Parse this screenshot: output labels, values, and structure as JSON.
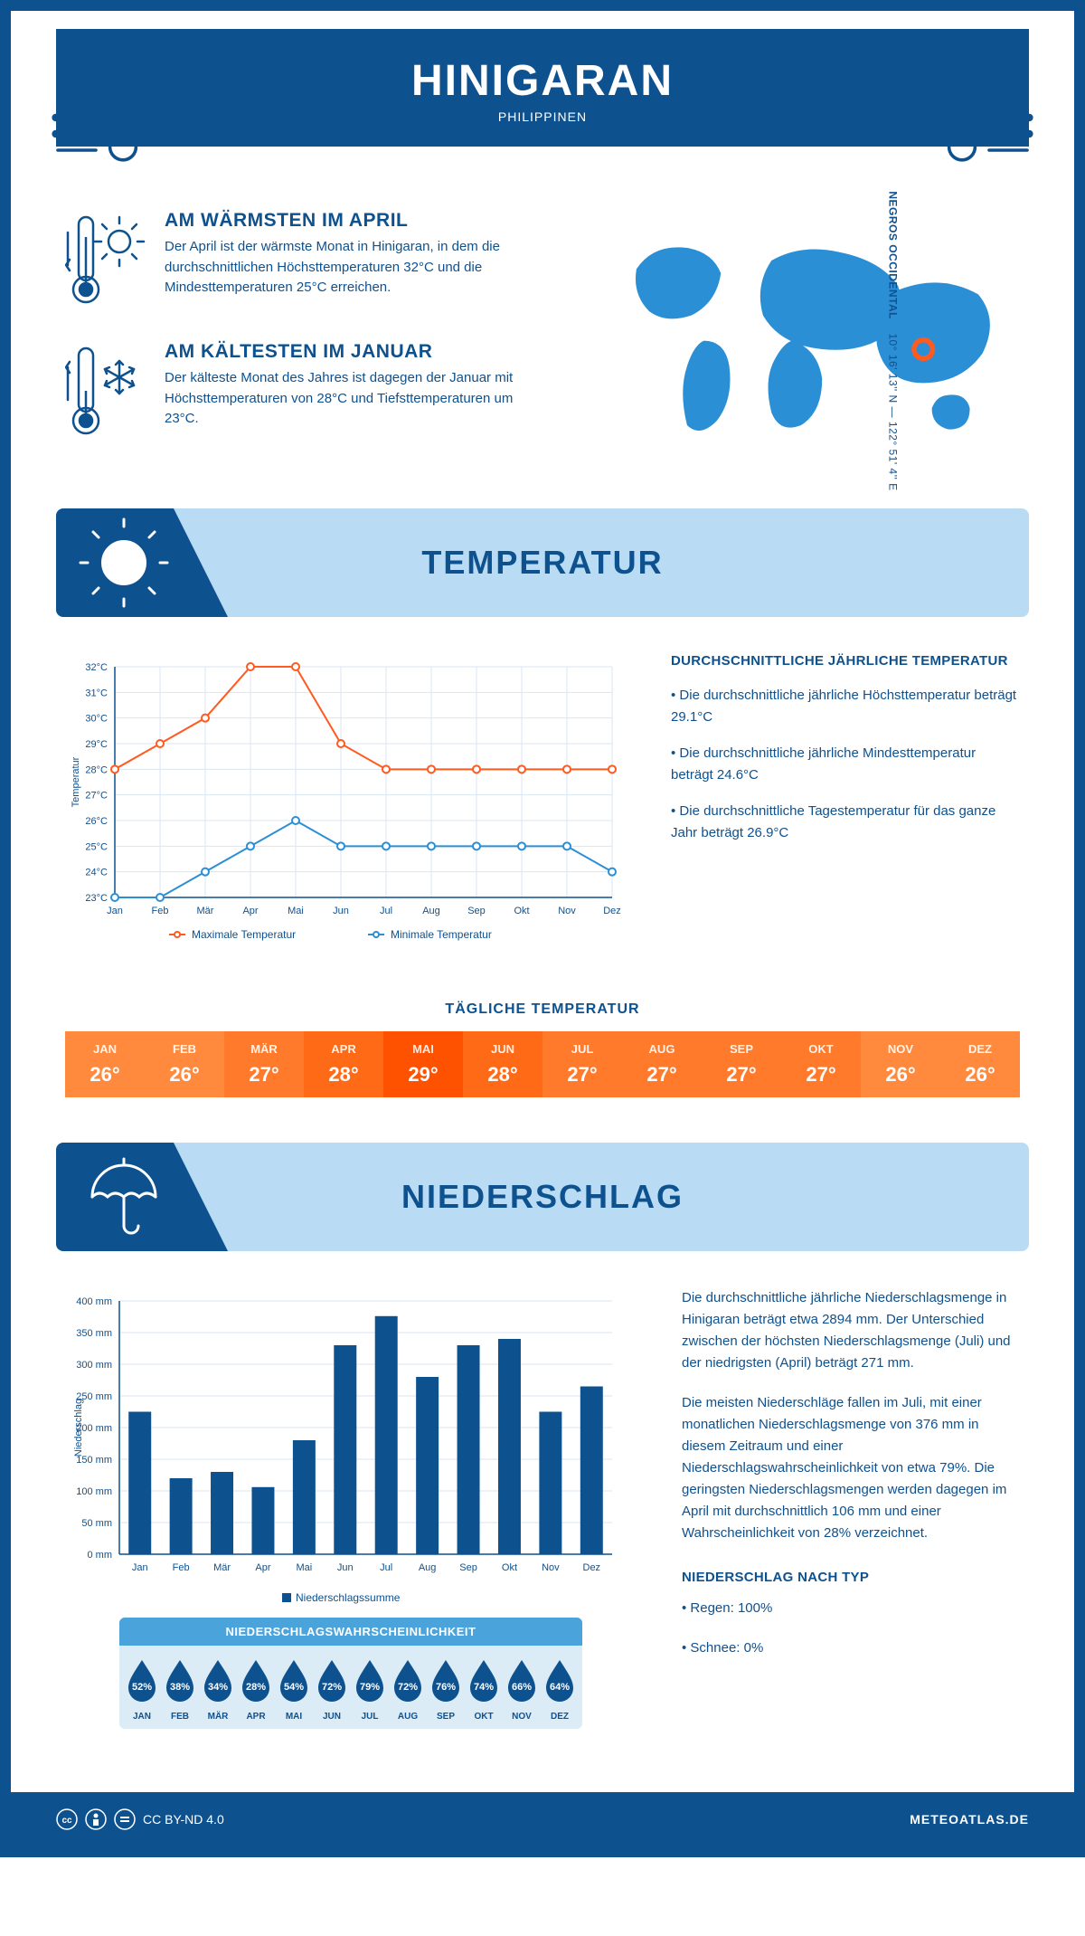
{
  "header": {
    "title": "HINIGARAN",
    "subtitle": "PHILIPPINEN"
  },
  "coords": {
    "lat": "10° 16' 13'' N",
    "lon": "122° 51' 4'' E",
    "region": "NEGROS OCCIDENTAL"
  },
  "warm": {
    "title": "AM WÄRMSTEN IM APRIL",
    "text": "Der April ist der wärmste Monat in Hinigaran, in dem die durchschnittlichen Höchsttemperaturen 32°C und die Mindesttemperaturen 25°C erreichen."
  },
  "cold": {
    "title": "AM KÄLTESTEN IM JANUAR",
    "text": "Der kälteste Monat des Jahres ist dagegen der Januar mit Höchsttemperaturen von 28°C und Tiefsttemperaturen um 23°C."
  },
  "temp_section": {
    "title": "TEMPERATUR"
  },
  "temp_chart": {
    "type": "line",
    "months": [
      "Jan",
      "Feb",
      "Mär",
      "Apr",
      "Mai",
      "Jun",
      "Jul",
      "Aug",
      "Sep",
      "Okt",
      "Nov",
      "Dez"
    ],
    "max": [
      28,
      29,
      30,
      32,
      32,
      29,
      28,
      28,
      28,
      28,
      28,
      28
    ],
    "min": [
      23,
      23,
      24,
      25,
      26,
      25,
      25,
      25,
      25,
      25,
      25,
      24
    ],
    "ylim": [
      23,
      32
    ],
    "ytick_step": 1,
    "max_color": "#ff5a1f",
    "min_color": "#2b8fd6",
    "grid_color": "#d8e6f0",
    "axis_color": "#0e518f",
    "yaxis_label": "Temperatur",
    "legend_max": "Maximale Temperatur",
    "legend_min": "Minimale Temperatur",
    "line_width": 2,
    "marker_r": 4
  },
  "temp_text": {
    "heading": "DURCHSCHNITTLICHE JÄHRLICHE TEMPERATUR",
    "b1": "• Die durchschnittliche jährliche Höchsttemperatur beträgt 29.1°C",
    "b2": "• Die durchschnittliche jährliche Mindesttemperatur beträgt 24.6°C",
    "b3": "• Die durchschnittliche Tagestemperatur für das ganze Jahr beträgt 26.9°C"
  },
  "daily": {
    "title": "TÄGLICHE TEMPERATUR",
    "months": [
      "JAN",
      "FEB",
      "MÄR",
      "APR",
      "MAI",
      "JUN",
      "JUL",
      "AUG",
      "SEP",
      "OKT",
      "NOV",
      "DEZ"
    ],
    "values": [
      "26°",
      "26°",
      "27°",
      "28°",
      "29°",
      "28°",
      "27°",
      "27°",
      "27°",
      "27°",
      "26°",
      "26°"
    ],
    "colors": [
      "#ff8a3d",
      "#ff8a3d",
      "#ff7a2a",
      "#ff6a17",
      "#ff5200",
      "#ff6a17",
      "#ff7a2a",
      "#ff7a2a",
      "#ff7a2a",
      "#ff7a2a",
      "#ff8a3d",
      "#ff8a3d"
    ]
  },
  "precip_section": {
    "title": "NIEDERSCHLAG"
  },
  "precip_chart": {
    "type": "bar",
    "months": [
      "Jan",
      "Feb",
      "Mär",
      "Apr",
      "Mai",
      "Jun",
      "Jul",
      "Aug",
      "Sep",
      "Okt",
      "Nov",
      "Dez"
    ],
    "values": [
      225,
      120,
      130,
      106,
      180,
      330,
      376,
      280,
      330,
      340,
      225,
      265
    ],
    "ylim": [
      0,
      400
    ],
    "ytick_step": 50,
    "bar_color": "#0e518f",
    "grid_color": "#d8e6f0",
    "yaxis_label": "Niederschlag",
    "yunit": " mm",
    "legend": "Niederschlagssumme",
    "bar_width": 0.55
  },
  "precip_text": {
    "p1": "Die durchschnittliche jährliche Niederschlagsmenge in Hinigaran beträgt etwa 2894 mm. Der Unterschied zwischen der höchsten Niederschlagsmenge (Juli) und der niedrigsten (April) beträgt 271 mm.",
    "p2": "Die meisten Niederschläge fallen im Juli, mit einer monatlichen Niederschlagsmenge von 376 mm in diesem Zeitraum und einer Niederschlagswahrscheinlichkeit von etwa 79%. Die geringsten Niederschlagsmengen werden dagegen im April mit durchschnittlich 106 mm und einer Wahrscheinlichkeit von 28% verzeichnet.",
    "type_heading": "NIEDERSCHLAG NACH TYP",
    "type_rain": "• Regen: 100%",
    "type_snow": "• Schnee: 0%"
  },
  "prob": {
    "title": "NIEDERSCHLAGSWAHRSCHEINLICHKEIT",
    "months": [
      "JAN",
      "FEB",
      "MÄR",
      "APR",
      "MAI",
      "JUN",
      "JUL",
      "AUG",
      "SEP",
      "OKT",
      "NOV",
      "DEZ"
    ],
    "values": [
      "52%",
      "38%",
      "34%",
      "28%",
      "54%",
      "72%",
      "79%",
      "72%",
      "76%",
      "74%",
      "66%",
      "64%"
    ],
    "drop_color": "#0e518f"
  },
  "footer": {
    "license": "CC BY-ND 4.0",
    "site": "METEOATLAS.DE"
  }
}
